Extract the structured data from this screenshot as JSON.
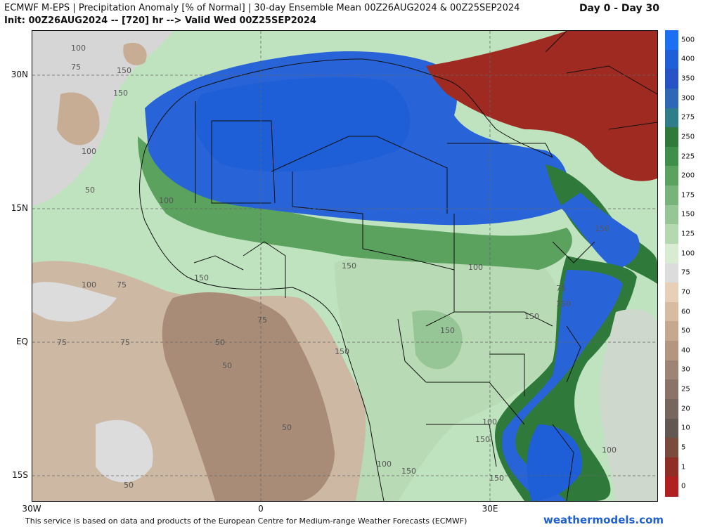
{
  "header": {
    "title_line1": "ECMWF M-EPS | Precipitation Anomaly [% of Normal] | 30-day Ensemble Mean 00Z26AUG2024 & 00Z25SEP2024",
    "title_line2": "Init: 00Z26AUG2024 -- [720] hr --> Valid Wed 00Z25SEP2024",
    "range": "Day 0 - Day 30"
  },
  "axes": {
    "lat_labels": [
      "30N",
      "15N",
      "EQ",
      "15S"
    ],
    "lon_labels": [
      "30W",
      "0",
      "30E"
    ]
  },
  "map_labels": [
    "100",
    "75",
    "150",
    "150",
    "100",
    "50",
    "100",
    "150",
    "75",
    "100",
    "75",
    "50",
    "50",
    "75",
    "50",
    "50",
    "150",
    "150",
    "150",
    "100",
    "150",
    "100",
    "150",
    "75",
    "150",
    "100",
    "150",
    "100",
    "150",
    "75",
    "150"
  ],
  "colorbar": {
    "labels": [
      "500",
      "400",
      "350",
      "300",
      "275",
      "250",
      "225",
      "200",
      "175",
      "150",
      "125",
      "100",
      "75",
      "70",
      "60",
      "50",
      "40",
      "30",
      "25",
      "20",
      "10",
      "5",
      "1",
      "0"
    ],
    "colors": [
      "#1c6ef2",
      "#1e5fd8",
      "#2853c4",
      "#2f66b5",
      "#2f7c8a",
      "#2f7a3a",
      "#3f8f4a",
      "#5aa25e",
      "#78b47a",
      "#96c596",
      "#b4d8b0",
      "#d8ecd2",
      "#dcdcdc",
      "#e8cfb8",
      "#d8bca2",
      "#c6a88e",
      "#b39680",
      "#9e8474",
      "#8a7468",
      "#76665e",
      "#625852",
      "#7a4a3c",
      "#8e2e26",
      "#b02020"
    ]
  },
  "footer": {
    "credit": "This service is based on data and products of the European Centre for Medium-range Weather Forecasts (ECMWF)",
    "brand": "weathermodels.com"
  }
}
